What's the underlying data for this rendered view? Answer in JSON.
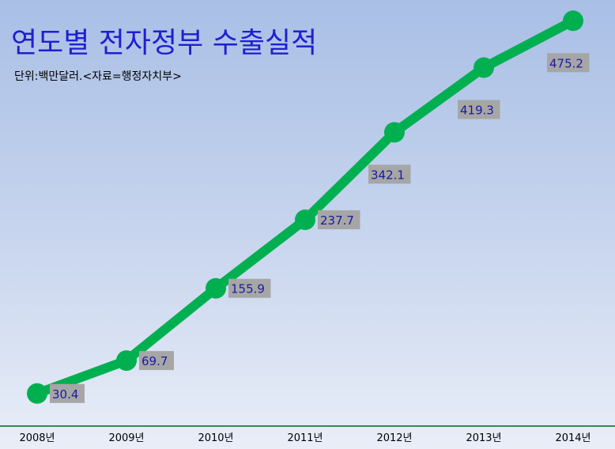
{
  "chart_data": {
    "type": "line",
    "title": "연도별 전자정부 수출실적",
    "subtitle": "단위:백만달러.<자료=행정자치부>",
    "xlabel": "",
    "ylabel": "",
    "categories": [
      "2008년",
      "2009년",
      "2010년",
      "2011년",
      "2012년",
      "2013년",
      "2014년"
    ],
    "values": [
      30.4,
      69.7,
      155.9,
      237.7,
      342.1,
      419.3,
      475.2
    ],
    "value_labels": [
      "30.4",
      "69.7",
      "155.9",
      "237.7",
      "342.1",
      "419.3",
      "475.2"
    ],
    "ylim": [
      0,
      500
    ],
    "grid": false,
    "legend": "none"
  },
  "colors": {
    "line": "#00b050",
    "title": "#1f1fd0",
    "label_text": "#1a1aa0",
    "label_bg": "#a6a6a6",
    "axis": "#2e8b57"
  }
}
